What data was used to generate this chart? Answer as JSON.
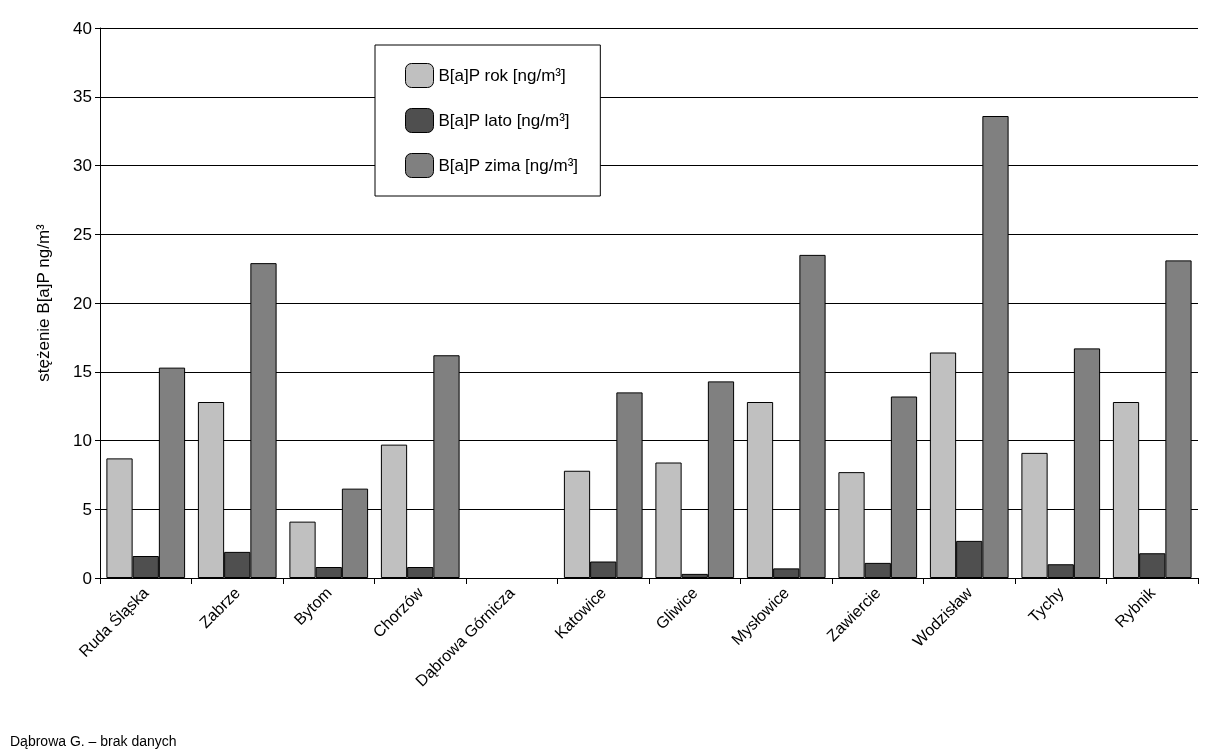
{
  "chart_data": {
    "type": "bar",
    "ylabel": "stężenie B[a]P ng/m³",
    "categories": [
      "Ruda Śląska",
      "Zabrze",
      "Bytom",
      "Chorzów",
      "Dąbrowa Górnicza",
      "Katowice",
      "Gliwice",
      "Mysłowice",
      "Zawiercie",
      "Wodzisław",
      "Tychy",
      "Rybnik"
    ],
    "series": [
      {
        "name": "B[a]P rok [ng/m³]",
        "color": "#c0c0c0",
        "values": [
          8.7,
          12.8,
          4.1,
          9.7,
          null,
          7.8,
          8.4,
          12.8,
          7.7,
          16.4,
          9.1,
          12.8
        ]
      },
      {
        "name": "B[a]P lato [ng/m³]",
        "color": "#4f4f4f",
        "values": [
          1.6,
          1.9,
          0.8,
          0.8,
          null,
          1.2,
          0.3,
          0.7,
          1.1,
          2.7,
          1.0,
          1.8
        ]
      },
      {
        "name": "B[a]P zima [ng/m³]",
        "color": "#808080",
        "values": [
          15.3,
          22.9,
          6.5,
          16.2,
          null,
          13.5,
          14.3,
          23.5,
          13.2,
          33.6,
          16.7,
          23.1
        ]
      }
    ],
    "ylim": [
      0,
      40
    ],
    "yticks": [
      0,
      5,
      10,
      15,
      20,
      25,
      30,
      35,
      40
    ],
    "grid": "y",
    "legend": "top",
    "annotations": [
      "Dąbrowa G. – brak danych"
    ]
  }
}
